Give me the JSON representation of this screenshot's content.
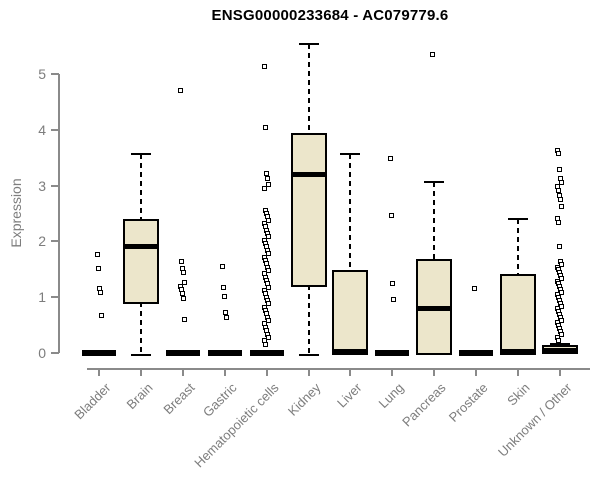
{
  "page": {
    "background": "#ffffff"
  },
  "chart_data": {
    "type": "boxplot",
    "title": "ENSG00000233684 - AC079779.6",
    "ylabel": "Expression",
    "xlabel": "",
    "ylim": [
      0,
      5.6
    ],
    "yticks": [
      0,
      1,
      2,
      3,
      4,
      5
    ],
    "grid": false,
    "legend": null,
    "categories": [
      "Bladder",
      "Brain",
      "Breast",
      "Gastric",
      "Hematopoietic cells",
      "Kidney",
      "Liver",
      "Lung",
      "Pancreas",
      "Prostate",
      "Skin",
      "Unknown / Other"
    ],
    "boxes": [
      {
        "category": "Bladder",
        "whisker_low": 0,
        "q1": 0,
        "median": 0,
        "q3": 0,
        "whisker_high": 0,
        "outliers": [
          1.76,
          1.52,
          1.16,
          1.08,
          0.68
        ]
      },
      {
        "category": "Brain",
        "whisker_low": 0,
        "q1": 0.91,
        "median": 1.91,
        "q3": 2.37,
        "whisker_high": 3.57,
        "outliers": []
      },
      {
        "category": "Breast",
        "whisker_low": 0,
        "q1": 0,
        "median": 0,
        "q3": 0,
        "whisker_high": 0,
        "outliers": [
          4.7,
          1.64,
          1.51,
          1.44,
          1.27,
          1.2,
          1.13,
          1.06,
          0.98,
          0.6
        ]
      },
      {
        "category": "Gastric",
        "whisker_low": 0,
        "q1": 0,
        "median": 0,
        "q3": 0,
        "whisker_high": 0,
        "outliers": [
          1.55,
          1.18,
          1.02,
          0.73,
          0.64
        ]
      },
      {
        "category": "Hematopoietic cells",
        "whisker_low": 0,
        "q1": 0,
        "median": 0,
        "q3": 0,
        "whisker_high": 0,
        "outliers": [
          5.14,
          4.05,
          3.22,
          3.12,
          3.02,
          2.94,
          2.56,
          2.5,
          2.44,
          2.38,
          2.32,
          2.26,
          2.2,
          2.14,
          2.08,
          2.02,
          1.96,
          1.9,
          1.84,
          1.78,
          1.72,
          1.66,
          1.6,
          1.54,
          1.48,
          1.42,
          1.36,
          1.3,
          1.24,
          1.18,
          1.12,
          1.06,
          1.0,
          0.94,
          0.88,
          0.82,
          0.76,
          0.7,
          0.64,
          0.58,
          0.52,
          0.46,
          0.4,
          0.34,
          0.28,
          0.22,
          0.16
        ]
      },
      {
        "category": "Kidney",
        "whisker_low": 0,
        "q1": 1.22,
        "median": 3.21,
        "q3": 3.91,
        "whisker_high": 5.54,
        "outliers": []
      },
      {
        "category": "Liver",
        "whisker_low": 0,
        "q1": 0,
        "median": 0.03,
        "q3": 1.46,
        "whisker_high": 3.57,
        "outliers": []
      },
      {
        "category": "Lung",
        "whisker_low": 0,
        "q1": 0,
        "median": 0,
        "q3": 0,
        "whisker_high": 0,
        "outliers": [
          3.49,
          2.47,
          1.25,
          0.96
        ]
      },
      {
        "category": "Pancreas",
        "whisker_low": 0,
        "q1": 0,
        "median": 0.8,
        "q3": 1.64,
        "whisker_high": 3.07,
        "outliers": [
          5.35
        ]
      },
      {
        "category": "Prostate",
        "whisker_low": 0,
        "q1": 0,
        "median": 0,
        "q3": 0,
        "whisker_high": 0,
        "outliers": [
          1.15
        ]
      },
      {
        "category": "Skin",
        "whisker_low": 0,
        "q1": 0,
        "median": 0.03,
        "q3": 1.38,
        "whisker_high": 2.41,
        "outliers": []
      },
      {
        "category": "Unknown / Other",
        "whisker_low": 0,
        "q1": 0.01,
        "median": 0.05,
        "q3": 0.1,
        "whisker_high": 0.16,
        "outliers": [
          3.63,
          3.57,
          3.28,
          3.13,
          3.05,
          2.98,
          2.91,
          2.83,
          2.75,
          2.62,
          2.41,
          2.34,
          1.9,
          1.64,
          1.59,
          1.54,
          1.49,
          1.44,
          1.39,
          1.34,
          1.29,
          1.24,
          1.19,
          1.14,
          1.09,
          1.04,
          0.99,
          0.94,
          0.89,
          0.84,
          0.79,
          0.74,
          0.69,
          0.64,
          0.59,
          0.54,
          0.49,
          0.44,
          0.39,
          0.34,
          0.28,
          0.23
        ]
      }
    ],
    "colors": {
      "box_fill": "#ece6cb",
      "box_line": "#000000",
      "axis_line": "#8a8a8a",
      "axis_text": "#7d7d7d",
      "title_text": "#000000"
    }
  }
}
